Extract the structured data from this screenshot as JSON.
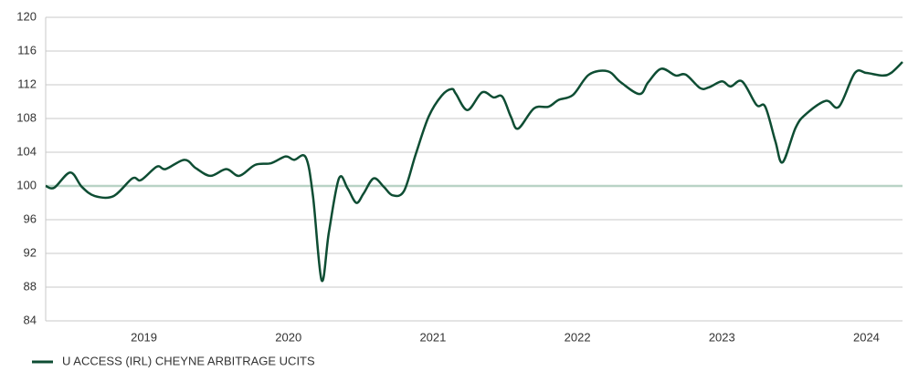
{
  "chart_data": {
    "type": "line",
    "x": [
      2018.32,
      2018.38,
      2018.49,
      2018.57,
      2018.66,
      2018.79,
      2018.92,
      2018.98,
      2019.09,
      2019.15,
      2019.28,
      2019.36,
      2019.46,
      2019.57,
      2019.66,
      2019.77,
      2019.88,
      2019.98,
      2020.04,
      2020.12,
      2020.17,
      2020.23,
      2020.28,
      2020.35,
      2020.41,
      2020.47,
      2020.52,
      2020.59,
      2020.66,
      2020.72,
      2020.8,
      2020.88,
      2020.97,
      2021.06,
      2021.13,
      2021.16,
      2021.24,
      2021.34,
      2021.42,
      2021.48,
      2021.54,
      2021.59,
      2021.7,
      2021.8,
      2021.87,
      2021.97,
      2022.08,
      2022.21,
      2022.3,
      2022.43,
      2022.49,
      2022.58,
      2022.68,
      2022.75,
      2022.85,
      2022.91,
      2023.0,
      2023.06,
      2023.14,
      2023.24,
      2023.3,
      2023.37,
      2023.42,
      2023.51,
      2023.58,
      2023.72,
      2023.81,
      2023.92,
      2024.0,
      2024.11,
      2024.17,
      2024.25
    ],
    "series": [
      {
        "name": "U ACCESS (IRL) CHEYNE ARBITRAGE UCITS",
        "color": "#0e4d33",
        "values": [
          100,
          99.8,
          101.6,
          99.9,
          98.8,
          98.8,
          100.9,
          100.7,
          102.3,
          102,
          103.1,
          102.1,
          101.2,
          102,
          101.2,
          102.5,
          102.7,
          103.5,
          103.1,
          103.4,
          98.8,
          88.8,
          94.5,
          100.9,
          99.7,
          98,
          99.1,
          100.9,
          99.9,
          98.9,
          99.4,
          103.7,
          108.2,
          110.7,
          111.5,
          110.9,
          109,
          111.1,
          110.5,
          110.6,
          108.2,
          106.8,
          109.2,
          109.4,
          110.2,
          110.8,
          113.2,
          113.6,
          112.3,
          110.9,
          112.3,
          113.9,
          113.1,
          113.2,
          111.6,
          111.7,
          112.4,
          111.8,
          112.4,
          109.6,
          109.4,
          105.3,
          102.8,
          106.9,
          108.5,
          110.1,
          109.4,
          113.4,
          113.4,
          113.1,
          113.4,
          114.7
        ]
      }
    ],
    "xlim": [
      2018.32,
      2024.25
    ],
    "xticks": [
      2019,
      2020,
      2021,
      2022,
      2023,
      2024
    ],
    "ylim": [
      84,
      120
    ],
    "yticks": [
      84,
      88,
      92,
      96,
      100,
      104,
      108,
      112,
      116,
      120
    ],
    "grid": true,
    "reference_line": {
      "value": 100,
      "color": "#b9d3c6"
    },
    "legend": "bottom-left"
  }
}
